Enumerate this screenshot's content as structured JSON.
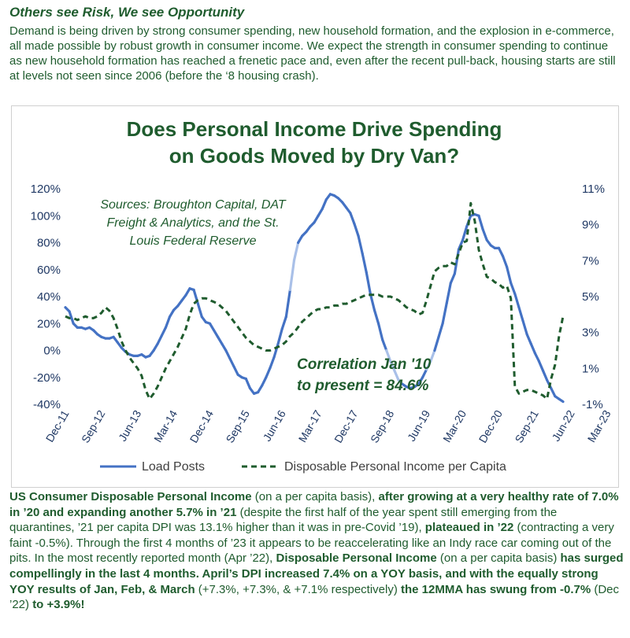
{
  "header": {
    "title": "Others see Risk, We see Opportunity",
    "intro": "Demand is being driven by strong consumer spending, new household formation, and the explosion in e-commerce, all made possible by robust growth in consumer income. We expect the strength in consumer spending to continue as new household formation has reached a frenetic pace and, even after the recent pull-back, housing starts are still at levels not seen since 2006 (before the ‘8 housing crash)."
  },
  "colors": {
    "load_posts": "#4472c4",
    "load_posts_light": "#a9c0e8",
    "dpi": "#1f5c2e",
    "text": "#1f5c2e"
  },
  "chart_data": {
    "type": "line",
    "title_line1": "Does Personal Income Drive Spending",
    "title_line2": "on Goods Moved by Dry Van?",
    "sources_lines": [
      "Sources: Broughton Capital, DAT",
      "Freight & Analytics, and the St.",
      "Louis Federal Reserve"
    ],
    "correlation_lines": [
      "Correlation Jan '10",
      "to present = 84.6%"
    ],
    "x_tick_labels": [
      "Dec-11",
      "Sep-12",
      "Jun-13",
      "Mar-14",
      "Dec-14",
      "Sep-15",
      "Jun-16",
      "Mar-17",
      "Dec-17",
      "Sep-18",
      "Jun-19",
      "Mar-20",
      "Dec-20",
      "Sep-21",
      "Jun-22",
      "Mar-23"
    ],
    "x_range": [
      "Dec-11",
      "May-23"
    ],
    "y_left_ticks": [
      "120%",
      "100%",
      "80%",
      "60%",
      "40%",
      "20%",
      "0%",
      "-20%",
      "-40%"
    ],
    "y_left_range": [
      -40,
      120
    ],
    "y_right_ticks": [
      "11%",
      "9%",
      "7%",
      "5%",
      "3%",
      "1%",
      "-1%"
    ],
    "y_right_range": [
      -1,
      11
    ],
    "legend": {
      "placement": "bottom",
      "load_posts": "Load Posts",
      "dpi": "Disposable Personal Income per Capita"
    },
    "series": [
      {
        "name": "Load Posts",
        "axis": "left",
        "style": "solid",
        "points": [
          [
            0,
            32
          ],
          [
            1,
            29
          ],
          [
            2,
            20
          ],
          [
            3,
            17
          ],
          [
            4,
            17
          ],
          [
            5,
            16
          ],
          [
            6,
            17
          ],
          [
            7,
            15
          ],
          [
            8,
            12
          ],
          [
            9,
            10
          ],
          [
            10,
            9
          ],
          [
            11,
            9
          ],
          [
            12,
            10
          ],
          [
            13,
            6
          ],
          [
            14,
            2
          ],
          [
            15,
            -1
          ],
          [
            16,
            -3
          ],
          [
            17,
            -4
          ],
          [
            18,
            -4
          ],
          [
            19,
            -3
          ],
          [
            20,
            -5
          ],
          [
            21,
            -4
          ],
          [
            22,
            0
          ],
          [
            23,
            5
          ],
          [
            24,
            11
          ],
          [
            25,
            17
          ],
          [
            26,
            25
          ],
          [
            27,
            30
          ],
          [
            28,
            33
          ],
          [
            29,
            37
          ],
          [
            30,
            41
          ],
          [
            31,
            46
          ],
          [
            32,
            45
          ],
          [
            33,
            35
          ],
          [
            34,
            25
          ],
          [
            35,
            21
          ],
          [
            36,
            20
          ],
          [
            37,
            15
          ],
          [
            38,
            10
          ],
          [
            39,
            5
          ],
          [
            40,
            0
          ],
          [
            41,
            -6
          ],
          [
            42,
            -12
          ],
          [
            43,
            -18
          ],
          [
            44,
            -20
          ],
          [
            45,
            -21
          ],
          [
            46,
            -28
          ],
          [
            47,
            -32
          ],
          [
            48,
            -31
          ],
          [
            49,
            -26
          ],
          [
            50,
            -20
          ],
          [
            51,
            -13
          ],
          [
            52,
            -5
          ],
          [
            53,
            5
          ],
          [
            54,
            16
          ],
          [
            55,
            25
          ],
          [
            56,
            45
          ],
          [
            57,
            67
          ],
          [
            58,
            80
          ],
          [
            59,
            85
          ],
          [
            60,
            88
          ],
          [
            61,
            92
          ],
          [
            62,
            95
          ],
          [
            63,
            100
          ],
          [
            64,
            105
          ],
          [
            65,
            112
          ],
          [
            66,
            116
          ],
          [
            67,
            115
          ],
          [
            68,
            113
          ],
          [
            69,
            110
          ],
          [
            70,
            106
          ],
          [
            71,
            102
          ],
          [
            72,
            94
          ],
          [
            73,
            85
          ],
          [
            74,
            72
          ],
          [
            75,
            58
          ],
          [
            76,
            42
          ],
          [
            77,
            30
          ],
          [
            78,
            20
          ],
          [
            79,
            8
          ],
          [
            80,
            0
          ],
          [
            81,
            -8
          ],
          [
            82,
            -15
          ],
          [
            83,
            -22
          ],
          [
            84,
            -25
          ],
          [
            85,
            -27
          ],
          [
            86,
            -28
          ],
          [
            87,
            -27
          ],
          [
            88,
            -25
          ],
          [
            89,
            -20
          ],
          [
            90,
            -14
          ],
          [
            91,
            -8
          ],
          [
            92,
            0
          ],
          [
            93,
            10
          ],
          [
            94,
            20
          ],
          [
            95,
            35
          ],
          [
            96,
            50
          ],
          [
            97,
            57
          ],
          [
            98,
            75
          ],
          [
            99,
            82
          ],
          [
            100,
            92
          ],
          [
            101,
            100
          ],
          [
            102,
            101
          ],
          [
            103,
            100
          ],
          [
            104,
            90
          ],
          [
            105,
            82
          ],
          [
            106,
            78
          ],
          [
            107,
            76
          ],
          [
            108,
            76
          ],
          [
            109,
            70
          ],
          [
            110,
            62
          ],
          [
            111,
            50
          ],
          [
            112,
            42
          ],
          [
            113,
            32
          ],
          [
            114,
            22
          ],
          [
            115,
            12
          ],
          [
            116,
            5
          ],
          [
            117,
            -2
          ],
          [
            118,
            -8
          ],
          [
            119,
            -15
          ],
          [
            120,
            -22
          ],
          [
            121,
            -28
          ],
          [
            122,
            -34
          ],
          [
            123,
            -36
          ],
          [
            124,
            -38
          ]
        ]
      },
      {
        "name": "Disposable Personal Income per Capita",
        "axis": "right",
        "style": "dashed",
        "points": [
          [
            0,
            3.9
          ],
          [
            1,
            3.8
          ],
          [
            2,
            3.8
          ],
          [
            3,
            3.7
          ],
          [
            4,
            3.8
          ],
          [
            5,
            3.9
          ],
          [
            6,
            3.8
          ],
          [
            7,
            3.8
          ],
          [
            8,
            3.9
          ],
          [
            9,
            4.1
          ],
          [
            10,
            4.4
          ],
          [
            11,
            4.2
          ],
          [
            12,
            3.8
          ],
          [
            13,
            3.2
          ],
          [
            14,
            2.5
          ],
          [
            15,
            2.0
          ],
          [
            16,
            1.6
          ],
          [
            17,
            1.3
          ],
          [
            18,
            1.0
          ],
          [
            19,
            0.6
          ],
          [
            20,
            -0.2
          ],
          [
            21,
            -0.7
          ],
          [
            22,
            -0.4
          ],
          [
            23,
            0.0
          ],
          [
            24,
            0.5
          ],
          [
            25,
            1.0
          ],
          [
            26,
            1.4
          ],
          [
            27,
            1.8
          ],
          [
            28,
            2.2
          ],
          [
            29,
            2.7
          ],
          [
            30,
            3.2
          ],
          [
            31,
            4.0
          ],
          [
            32,
            4.6
          ],
          [
            33,
            4.8
          ],
          [
            34,
            4.9
          ],
          [
            35,
            4.9
          ],
          [
            36,
            4.8
          ],
          [
            37,
            4.7
          ],
          [
            38,
            4.6
          ],
          [
            39,
            4.4
          ],
          [
            40,
            4.2
          ],
          [
            41,
            3.9
          ],
          [
            42,
            3.6
          ],
          [
            43,
            3.3
          ],
          [
            44,
            3.0
          ],
          [
            45,
            2.7
          ],
          [
            46,
            2.5
          ],
          [
            47,
            2.3
          ],
          [
            48,
            2.2
          ],
          [
            49,
            2.1
          ],
          [
            50,
            2.0
          ],
          [
            51,
            2.0
          ],
          [
            52,
            2.1
          ],
          [
            53,
            2.2
          ],
          [
            54,
            2.3
          ],
          [
            55,
            2.5
          ],
          [
            56,
            2.8
          ],
          [
            57,
            3.0
          ],
          [
            58,
            3.3
          ],
          [
            59,
            3.6
          ],
          [
            60,
            3.8
          ],
          [
            61,
            4.0
          ],
          [
            62,
            4.2
          ],
          [
            63,
            4.3
          ],
          [
            64,
            4.3
          ],
          [
            65,
            4.4
          ],
          [
            66,
            4.4
          ],
          [
            67,
            4.5
          ],
          [
            68,
            4.5
          ],
          [
            69,
            4.6
          ],
          [
            70,
            4.6
          ],
          [
            71,
            4.7
          ],
          [
            72,
            4.8
          ],
          [
            73,
            4.9
          ],
          [
            74,
            5.0
          ],
          [
            75,
            5.1
          ],
          [
            76,
            5.1
          ],
          [
            77,
            5.1
          ],
          [
            78,
            5.1
          ],
          [
            79,
            5.0
          ],
          [
            80,
            5.0
          ],
          [
            81,
            5.0
          ],
          [
            82,
            4.9
          ],
          [
            83,
            4.8
          ],
          [
            84,
            4.6
          ],
          [
            85,
            4.4
          ],
          [
            86,
            4.3
          ],
          [
            87,
            4.2
          ],
          [
            88,
            4.0
          ],
          [
            89,
            4.1
          ],
          [
            90,
            4.8
          ],
          [
            91,
            5.6
          ],
          [
            92,
            6.4
          ],
          [
            93,
            6.6
          ],
          [
            94,
            6.7
          ],
          [
            95,
            6.7
          ],
          [
            96,
            6.9
          ],
          [
            97,
            6.8
          ],
          [
            98,
            7.4
          ],
          [
            99,
            8.0
          ],
          [
            100,
            8.1
          ],
          [
            101,
            10.2
          ],
          [
            102,
            9.2
          ],
          [
            103,
            7.6
          ],
          [
            104,
            6.8
          ],
          [
            105,
            6.1
          ],
          [
            106,
            6.0
          ],
          [
            107,
            5.8
          ],
          [
            108,
            5.7
          ],
          [
            109,
            5.5
          ],
          [
            110,
            5.6
          ],
          [
            111,
            4.9
          ],
          [
            112,
            0.0
          ],
          [
            113,
            -0.4
          ],
          [
            114,
            -0.3
          ],
          [
            115,
            -0.2
          ],
          [
            116,
            -0.2
          ],
          [
            117,
            -0.3
          ],
          [
            118,
            -0.4
          ],
          [
            119,
            -0.5
          ],
          [
            120,
            -0.7
          ],
          [
            121,
            0.4
          ],
          [
            122,
            1.2
          ],
          [
            123,
            2.8
          ],
          [
            124,
            3.9
          ]
        ]
      }
    ]
  },
  "body_segments": [
    {
      "b": true,
      "t": "US Consumer Disposable Personal Income"
    },
    {
      "b": false,
      "t": " (on a per capita basis), "
    },
    {
      "b": true,
      "t": "after growing at a very healthy rate of 7.0% in ’20 and expanding another 5.7% in ’21"
    },
    {
      "b": false,
      "t": " (despite the first half of the year spent still emerging from the quarantines, ’21 per capita DPI was 13.1% higher than it was in pre-Covid ’19), "
    },
    {
      "b": true,
      "t": "plateaued in ’22"
    },
    {
      "b": false,
      "t": " (contracting a very faint -0.5%). Through the first 4 months of ’23 it appears to be reaccelerating like an Indy race car coming out of the pits. In the most recently reported month (Apr ’22), "
    },
    {
      "b": true,
      "t": "Disposable Personal Income"
    },
    {
      "b": false,
      "t": " (on a per capita basis) "
    },
    {
      "b": true,
      "t": "has surged compellingly in the last 4 months. April’s DPI increased 7.4% on a YOY basis, and with the equally strong YOY results of Jan, Feb, & March"
    },
    {
      "b": false,
      "t": " (+7.3%, +7.3%, & +7.1% respectively) "
    },
    {
      "b": true,
      "t": "the 12MMA has swung from -0.7%"
    },
    {
      "b": false,
      "t": " (Dec ’22) "
    },
    {
      "b": true,
      "t": "to +3.9%!"
    }
  ]
}
